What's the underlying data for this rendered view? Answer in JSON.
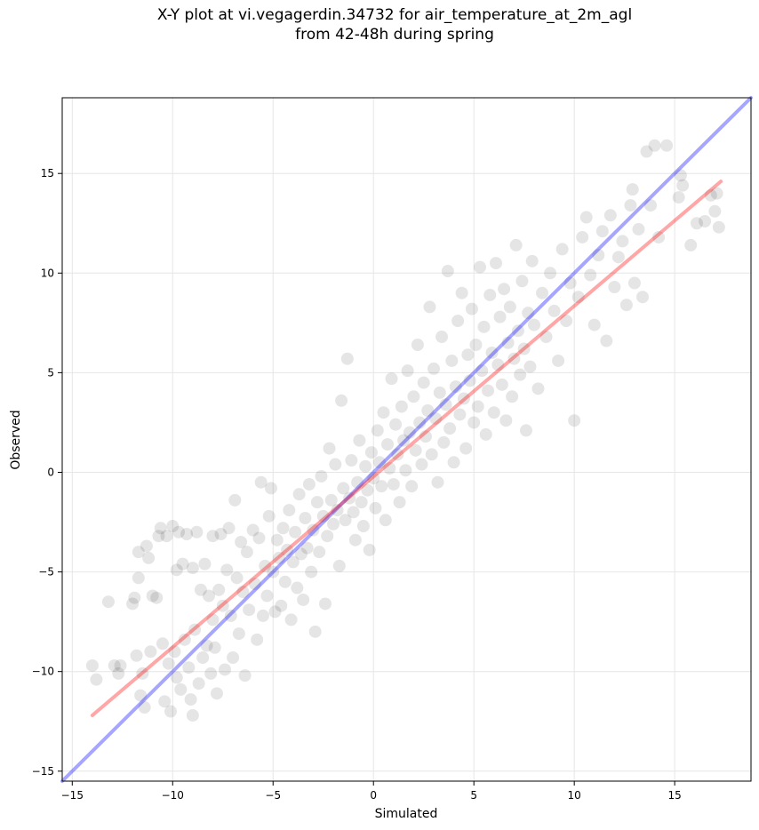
{
  "title_line1": "X-Y plot at vi.vegagerdin.34732 for air_temperature_at_2m_agl",
  "title_line2": "from 42-48h during spring",
  "chart_data": {
    "type": "scatter",
    "xlabel": "Simulated",
    "ylabel": "Observed",
    "xlim": [
      -15.5,
      18.8
    ],
    "ylim": [
      -15.5,
      18.8
    ],
    "xticks": [
      -15,
      -10,
      -5,
      0,
      5,
      10,
      15
    ],
    "yticks": [
      -15,
      -10,
      -5,
      0,
      5,
      10,
      15
    ],
    "xtick_labels": [
      "−15",
      "−10",
      "−5",
      "0",
      "5",
      "10",
      "15"
    ],
    "ytick_labels": [
      "−15",
      "−10",
      "−5",
      "0",
      "5",
      "10",
      "15"
    ],
    "grid": true,
    "point_color": "#000000",
    "point_alpha": 0.1,
    "points": [
      [
        -14.0,
        -9.7
      ],
      [
        -13.8,
        -10.4
      ],
      [
        -13.2,
        -6.5
      ],
      [
        -12.9,
        -9.7
      ],
      [
        -12.7,
        -10.1
      ],
      [
        -12.6,
        -9.7
      ],
      [
        -12.0,
        -6.6
      ],
      [
        -11.9,
        -6.3
      ],
      [
        -11.8,
        -9.2
      ],
      [
        -11.7,
        -4.0
      ],
      [
        -11.7,
        -5.3
      ],
      [
        -11.6,
        -11.2
      ],
      [
        -11.5,
        -10.1
      ],
      [
        -11.4,
        -11.8
      ],
      [
        -11.3,
        -3.7
      ],
      [
        -11.2,
        -4.3
      ],
      [
        -11.1,
        -9.0
      ],
      [
        -11.0,
        -6.2
      ],
      [
        -10.8,
        -6.3
      ],
      [
        -10.7,
        -3.2
      ],
      [
        -10.6,
        -2.8
      ],
      [
        -10.5,
        -8.6
      ],
      [
        -10.4,
        -11.5
      ],
      [
        -10.3,
        -3.2
      ],
      [
        -10.2,
        -9.6
      ],
      [
        -10.1,
        -12.0
      ],
      [
        -10.0,
        -2.7
      ],
      [
        -9.9,
        -9.0
      ],
      [
        -9.8,
        -4.9
      ],
      [
        -9.8,
        -10.3
      ],
      [
        -9.7,
        -3.0
      ],
      [
        -9.6,
        -10.9
      ],
      [
        -9.5,
        -4.6
      ],
      [
        -9.4,
        -8.4
      ],
      [
        -9.3,
        -3.1
      ],
      [
        -9.2,
        -9.8
      ],
      [
        -9.1,
        -11.4
      ],
      [
        -9.0,
        -4.8
      ],
      [
        -9.0,
        -12.2
      ],
      [
        -8.9,
        -7.9
      ],
      [
        -8.8,
        -3.0
      ],
      [
        -8.7,
        -10.6
      ],
      [
        -8.6,
        -5.9
      ],
      [
        -8.5,
        -9.3
      ],
      [
        -8.4,
        -4.6
      ],
      [
        -8.3,
        -8.7
      ],
      [
        -8.2,
        -6.2
      ],
      [
        -8.1,
        -10.1
      ],
      [
        -8.0,
        -3.2
      ],
      [
        -8.0,
        -7.4
      ],
      [
        -7.9,
        -8.8
      ],
      [
        -7.8,
        -11.1
      ],
      [
        -7.7,
        -5.9
      ],
      [
        -7.6,
        -3.1
      ],
      [
        -7.5,
        -6.7
      ],
      [
        -7.4,
        -9.9
      ],
      [
        -7.3,
        -4.9
      ],
      [
        -7.2,
        -2.8
      ],
      [
        -7.1,
        -7.2
      ],
      [
        -7.0,
        -9.3
      ],
      [
        -6.9,
        -1.4
      ],
      [
        -6.8,
        -5.3
      ],
      [
        -6.7,
        -8.1
      ],
      [
        -6.6,
        -3.5
      ],
      [
        -6.5,
        -6.0
      ],
      [
        -6.4,
        -10.2
      ],
      [
        -6.3,
        -4.0
      ],
      [
        -6.2,
        -6.9
      ],
      [
        -6.0,
        -2.9
      ],
      [
        -5.9,
        -5.6
      ],
      [
        -5.8,
        -8.4
      ],
      [
        -5.7,
        -3.3
      ],
      [
        -5.6,
        -0.5
      ],
      [
        -5.5,
        -7.2
      ],
      [
        -5.4,
        -4.7
      ],
      [
        -5.3,
        -6.2
      ],
      [
        -5.2,
        -2.2
      ],
      [
        -5.1,
        -0.8
      ],
      [
        -5.0,
        -5.0
      ],
      [
        -4.9,
        -7.0
      ],
      [
        -4.8,
        -3.4
      ],
      [
        -4.7,
        -4.3
      ],
      [
        -4.6,
        -6.7
      ],
      [
        -4.5,
        -2.8
      ],
      [
        -4.4,
        -5.5
      ],
      [
        -4.3,
        -3.9
      ],
      [
        -4.2,
        -1.9
      ],
      [
        -4.1,
        -7.4
      ],
      [
        -4.0,
        -4.5
      ],
      [
        -3.9,
        -3.0
      ],
      [
        -3.8,
        -5.8
      ],
      [
        -3.7,
        -1.1
      ],
      [
        -3.6,
        -4.1
      ],
      [
        -3.5,
        -6.4
      ],
      [
        -3.4,
        -2.3
      ],
      [
        -3.3,
        -3.8
      ],
      [
        -3.2,
        -0.6
      ],
      [
        -3.1,
        -5.0
      ],
      [
        -3.0,
        -2.9
      ],
      [
        -2.9,
        -8.0
      ],
      [
        -2.8,
        -1.5
      ],
      [
        -2.7,
        -4.0
      ],
      [
        -2.6,
        -0.2
      ],
      [
        -2.5,
        -2.2
      ],
      [
        -2.4,
        -6.6
      ],
      [
        -2.3,
        -3.2
      ],
      [
        -2.2,
        1.2
      ],
      [
        -2.1,
        -1.4
      ],
      [
        -2.0,
        -2.6
      ],
      [
        -1.9,
        0.4
      ],
      [
        -1.8,
        -1.9
      ],
      [
        -1.7,
        -4.7
      ],
      [
        -1.6,
        3.6
      ],
      [
        -1.5,
        -0.8
      ],
      [
        -1.4,
        -2.4
      ],
      [
        -1.3,
        5.7
      ],
      [
        -1.2,
        -1.3
      ],
      [
        -1.1,
        0.6
      ],
      [
        -1.0,
        -2.0
      ],
      [
        -0.9,
        -3.4
      ],
      [
        -0.8,
        -0.5
      ],
      [
        -0.7,
        1.6
      ],
      [
        -0.6,
        -1.5
      ],
      [
        -0.5,
        -2.7
      ],
      [
        -0.4,
        0.3
      ],
      [
        -0.3,
        -0.9
      ],
      [
        -0.2,
        -3.9
      ],
      [
        -0.1,
        1.0
      ],
      [
        0.0,
        -0.3
      ],
      [
        0.1,
        -1.8
      ],
      [
        0.2,
        2.1
      ],
      [
        0.3,
        0.5
      ],
      [
        0.4,
        -0.7
      ],
      [
        0.5,
        3.0
      ],
      [
        0.6,
        -2.4
      ],
      [
        0.7,
        1.4
      ],
      [
        0.8,
        0.2
      ],
      [
        0.9,
        4.7
      ],
      [
        1.0,
        -0.6
      ],
      [
        1.1,
        2.4
      ],
      [
        1.2,
        0.9
      ],
      [
        1.3,
        -1.5
      ],
      [
        1.4,
        3.3
      ],
      [
        1.5,
        1.6
      ],
      [
        1.6,
        0.1
      ],
      [
        1.7,
        5.1
      ],
      [
        1.8,
        2.0
      ],
      [
        1.9,
        -0.7
      ],
      [
        2.0,
        3.8
      ],
      [
        2.1,
        1.1
      ],
      [
        2.2,
        6.4
      ],
      [
        2.3,
        2.5
      ],
      [
        2.4,
        0.4
      ],
      [
        2.5,
        4.5
      ],
      [
        2.6,
        1.8
      ],
      [
        2.7,
        3.1
      ],
      [
        2.8,
        8.3
      ],
      [
        2.9,
        0.9
      ],
      [
        3.0,
        5.2
      ],
      [
        3.1,
        2.7
      ],
      [
        3.2,
        -0.5
      ],
      [
        3.3,
        4.0
      ],
      [
        3.4,
        6.8
      ],
      [
        3.5,
        1.5
      ],
      [
        3.6,
        3.4
      ],
      [
        3.7,
        10.1
      ],
      [
        3.8,
        2.2
      ],
      [
        3.9,
        5.6
      ],
      [
        4.0,
        0.5
      ],
      [
        4.1,
        4.3
      ],
      [
        4.2,
        7.6
      ],
      [
        4.3,
        2.9
      ],
      [
        4.4,
        9.0
      ],
      [
        4.5,
        3.7
      ],
      [
        4.6,
        1.2
      ],
      [
        4.7,
        5.9
      ],
      [
        4.8,
        4.6
      ],
      [
        4.9,
        8.2
      ],
      [
        5.0,
        2.5
      ],
      [
        5.1,
        6.4
      ],
      [
        5.2,
        3.3
      ],
      [
        5.3,
        10.3
      ],
      [
        5.4,
        5.1
      ],
      [
        5.5,
        7.3
      ],
      [
        5.6,
        1.9
      ],
      [
        5.7,
        4.1
      ],
      [
        5.8,
        8.9
      ],
      [
        5.9,
        6.0
      ],
      [
        6.0,
        3.0
      ],
      [
        6.1,
        10.5
      ],
      [
        6.2,
        5.4
      ],
      [
        6.3,
        7.8
      ],
      [
        6.4,
        4.4
      ],
      [
        6.5,
        9.2
      ],
      [
        6.6,
        2.6
      ],
      [
        6.7,
        6.5
      ],
      [
        6.8,
        8.3
      ],
      [
        6.9,
        3.8
      ],
      [
        7.0,
        5.7
      ],
      [
        7.1,
        11.4
      ],
      [
        7.2,
        7.1
      ],
      [
        7.3,
        4.9
      ],
      [
        7.4,
        9.6
      ],
      [
        7.5,
        6.2
      ],
      [
        7.6,
        2.1
      ],
      [
        7.7,
        8.0
      ],
      [
        7.8,
        5.3
      ],
      [
        7.9,
        10.6
      ],
      [
        8.0,
        7.4
      ],
      [
        8.2,
        4.2
      ],
      [
        8.4,
        9.0
      ],
      [
        8.6,
        6.8
      ],
      [
        8.8,
        10.0
      ],
      [
        9.0,
        8.1
      ],
      [
        9.2,
        5.6
      ],
      [
        9.4,
        11.2
      ],
      [
        9.6,
        7.6
      ],
      [
        9.8,
        9.5
      ],
      [
        10.0,
        2.6
      ],
      [
        10.2,
        8.8
      ],
      [
        10.4,
        11.8
      ],
      [
        10.6,
        12.8
      ],
      [
        10.8,
        9.9
      ],
      [
        11.0,
        7.4
      ],
      [
        11.2,
        10.9
      ],
      [
        11.4,
        12.1
      ],
      [
        11.6,
        6.6
      ],
      [
        11.8,
        12.9
      ],
      [
        12.0,
        9.3
      ],
      [
        12.2,
        10.8
      ],
      [
        12.4,
        11.6
      ],
      [
        12.6,
        8.4
      ],
      [
        12.8,
        13.4
      ],
      [
        13.0,
        9.5
      ],
      [
        13.2,
        12.2
      ],
      [
        13.4,
        8.8
      ],
      [
        13.6,
        16.1
      ],
      [
        13.8,
        13.4
      ],
      [
        14.0,
        16.4
      ],
      [
        14.2,
        11.8
      ],
      [
        15.2,
        13.8
      ],
      [
        15.3,
        14.9
      ],
      [
        15.4,
        14.4
      ],
      [
        15.8,
        11.4
      ],
      [
        16.1,
        12.5
      ],
      [
        16.5,
        12.6
      ],
      [
        17.0,
        13.1
      ],
      [
        17.1,
        14.0
      ],
      [
        17.2,
        12.3
      ],
      [
        12.9,
        14.2
      ],
      [
        14.6,
        16.4
      ],
      [
        16.8,
        13.9
      ]
    ],
    "lines": [
      {
        "color": "#0000ff",
        "alpha": 0.35,
        "from": [
          -15.5,
          -15.5
        ],
        "to": [
          18.8,
          18.8
        ]
      },
      {
        "color": "#ff0000",
        "alpha": 0.35,
        "from": [
          -14.0,
          -12.2
        ],
        "to": [
          17.3,
          14.6
        ]
      }
    ]
  }
}
